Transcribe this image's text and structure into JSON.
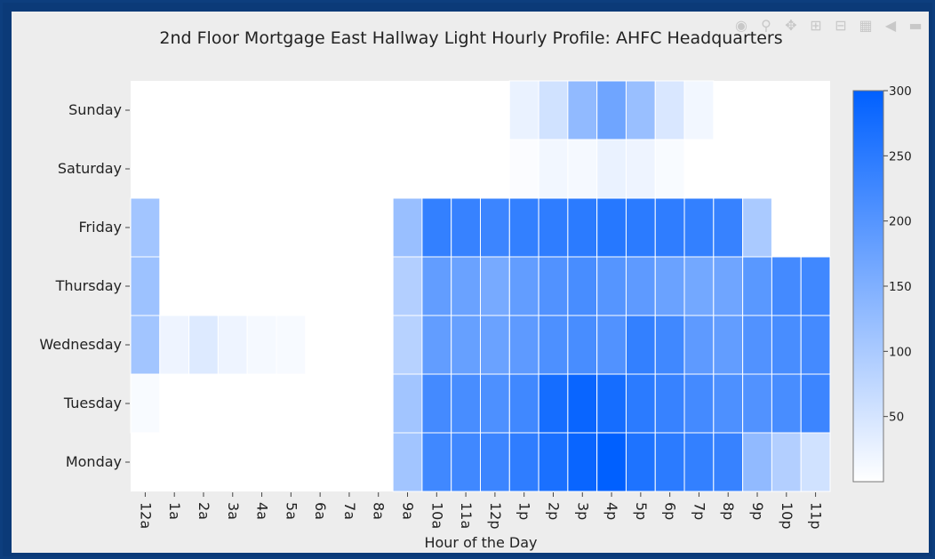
{
  "modebar": {
    "icons": [
      "camera-icon",
      "zoom-icon",
      "pan-icon",
      "zoom-in-icon",
      "zoom-out-icon",
      "autoscale-icon",
      "reset-icon",
      "hover-icon"
    ]
  },
  "chart_data": {
    "type": "heatmap",
    "title": "2nd Floor Mortgage East Hallway Light Hourly Profile: AHFC Headquarters",
    "xlabel": "Hour of the Day",
    "ylabel": "",
    "x": [
      "12a",
      "1a",
      "2a",
      "3a",
      "4a",
      "5a",
      "6a",
      "7a",
      "8a",
      "9a",
      "10a",
      "11a",
      "12p",
      "1p",
      "2p",
      "3p",
      "4p",
      "5p",
      "6p",
      "7p",
      "8p",
      "9p",
      "10p",
      "11p"
    ],
    "y": [
      "Sunday",
      "Saturday",
      "Friday",
      "Thursday",
      "Wednesday",
      "Tuesday",
      "Monday"
    ],
    "z": [
      [
        0,
        0,
        0,
        0,
        0,
        0,
        0,
        0,
        0,
        0,
        0,
        0,
        0,
        25,
        55,
        130,
        170,
        120,
        45,
        15,
        0,
        0,
        0,
        0
      ],
      [
        0,
        0,
        0,
        0,
        0,
        0,
        0,
        0,
        0,
        0,
        0,
        0,
        0,
        5,
        15,
        12,
        25,
        20,
        8,
        0,
        0,
        0,
        0,
        0
      ],
      [
        110,
        0,
        0,
        0,
        0,
        0,
        0,
        0,
        0,
        120,
        240,
        235,
        230,
        240,
        245,
        250,
        255,
        250,
        245,
        240,
        235,
        100,
        0,
        0
      ],
      [
        115,
        0,
        0,
        0,
        0,
        0,
        0,
        0,
        0,
        90,
        185,
        175,
        160,
        185,
        205,
        215,
        200,
        190,
        175,
        165,
        170,
        195,
        220,
        225
      ],
      [
        110,
        20,
        40,
        20,
        12,
        10,
        0,
        0,
        0,
        85,
        185,
        180,
        175,
        190,
        210,
        215,
        205,
        240,
        225,
        190,
        185,
        205,
        215,
        220
      ],
      [
        8,
        0,
        0,
        0,
        0,
        0,
        0,
        0,
        0,
        110,
        220,
        215,
        210,
        225,
        275,
        290,
        275,
        250,
        235,
        220,
        210,
        205,
        215,
        230
      ],
      [
        0,
        0,
        0,
        0,
        0,
        0,
        0,
        0,
        0,
        110,
        225,
        225,
        230,
        245,
        270,
        290,
        300,
        265,
        250,
        240,
        235,
        130,
        90,
        55
      ]
    ],
    "zrange": [
      0,
      300
    ],
    "colorscale": [
      "#ffffff",
      "#0060ff"
    ],
    "colorbar_ticks": [
      50,
      100,
      150,
      200,
      250,
      300
    ],
    "grid": true
  }
}
